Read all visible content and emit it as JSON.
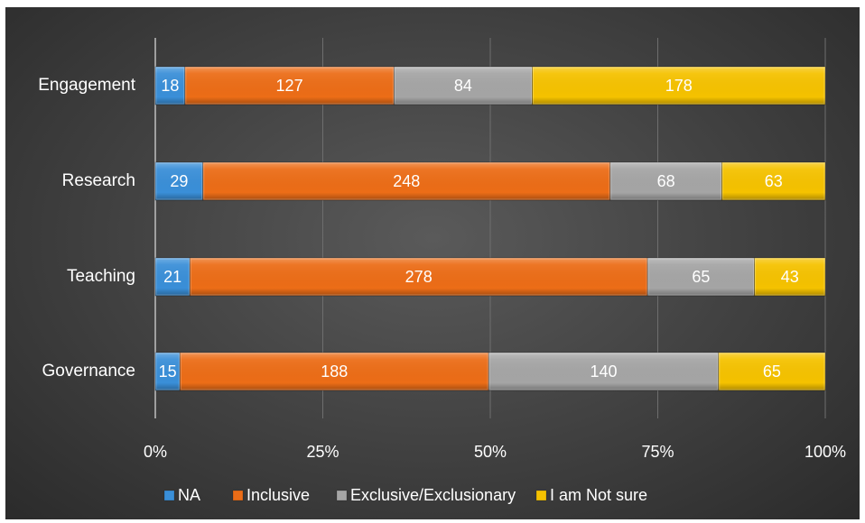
{
  "chart_data": {
    "type": "bar",
    "orientation": "horizontal",
    "stacked": "percent",
    "categories": [
      "Engagement",
      "Research",
      "Teaching",
      "Governance"
    ],
    "series": [
      {
        "name": "NA",
        "values": [
          18,
          29,
          21,
          15
        ],
        "color": "#3a8fd8"
      },
      {
        "name": "Inclusive",
        "values": [
          127,
          248,
          278,
          188
        ],
        "color": "#ec6d17"
      },
      {
        "name": "Exclusive/Exclusionary",
        "values": [
          84,
          68,
          65,
          140
        ],
        "color": "#a5a5a5"
      },
      {
        "name": "I am Not sure",
        "values": [
          178,
          63,
          43,
          65
        ],
        "color": "#f5c200"
      }
    ],
    "xticks": [
      "0%",
      "25%",
      "50%",
      "75%",
      "100%"
    ],
    "xlim": [
      0,
      100
    ],
    "grid": true,
    "legend": "bottom",
    "data_labels": true,
    "background": "#404040"
  }
}
